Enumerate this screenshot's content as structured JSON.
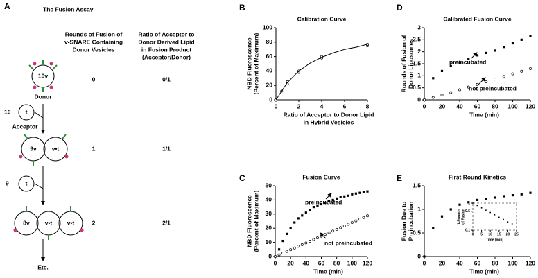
{
  "diagram": {
    "panel": "A",
    "title": "The Fusion Assay",
    "headers": [
      [
        "Rounds of Fusion of",
        "v-SNARE Containing",
        "Donor Vesicles"
      ],
      [
        "Ratio of Acceptor to",
        "Donor Derived Lipid",
        "in Fusion Product",
        "(Acceptor/Donor)"
      ]
    ],
    "rows": [
      [
        "0",
        "0/1"
      ],
      [
        "1",
        "1/1"
      ],
      [
        "2",
        "2/1"
      ]
    ],
    "labels": [
      "10v",
      "Donor",
      "10",
      "t",
      "Acceptor",
      "9v",
      "v•t",
      "9",
      "t",
      "8v",
      "v•t",
      "v•t",
      "Etc."
    ]
  },
  "chart_data": [
    {
      "type": "line",
      "panel": "B",
      "title": "Calibration Curve",
      "ylabel": [
        "NBD Fluorescence",
        "(Percent of Maximum)"
      ],
      "xlabel": [
        "Ratio of Acceptor to Donor Lipid",
        "in Hybrid Vesicles"
      ],
      "xlim": [
        0,
        8
      ],
      "ylim": [
        0,
        100
      ],
      "xticks": [
        0,
        2,
        4,
        6,
        8
      ],
      "yticks": [
        0,
        20,
        40,
        60,
        80,
        100
      ],
      "series": [
        {
          "color": "#000000",
          "style": "points",
          "marker": "open",
          "x": [
            0,
            0.5,
            1,
            1,
            2,
            2,
            4,
            4,
            8,
            8
          ],
          "values": [
            0,
            12,
            22,
            25,
            38,
            40,
            58,
            60,
            75,
            77
          ]
        },
        {
          "color": "#000000",
          "style": "line",
          "x": [
            0,
            1,
            2,
            3,
            4,
            5,
            6,
            7,
            8
          ],
          "values": [
            0,
            24,
            40,
            51,
            59,
            65,
            70,
            73,
            77
          ]
        }
      ]
    },
    {
      "type": "line",
      "panel": "C",
      "title": "Fusion Curve",
      "ylabel": [
        "NBD Fluorescence",
        "(Percent of Maximum)"
      ],
      "xlabel": [
        "Time (min)"
      ],
      "xlim": [
        0,
        120
      ],
      "ylim": [
        0,
        50
      ],
      "xticks": [
        0,
        20,
        40,
        60,
        80,
        100,
        120
      ],
      "yticks": [
        0,
        10,
        20,
        30,
        40,
        50
      ],
      "x": [
        0,
        5,
        10,
        15,
        20,
        25,
        30,
        35,
        40,
        45,
        50,
        55,
        60,
        65,
        70,
        75,
        80,
        85,
        90,
        95,
        100,
        105,
        110,
        115,
        120
      ],
      "annotations": [
        "preincubated",
        "not preincubated"
      ],
      "series": [
        {
          "color": "#000000",
          "style": "points",
          "marker": "filled",
          "values": [
            0,
            5,
            11,
            16,
            20,
            24,
            27,
            29,
            31,
            33,
            35,
            36,
            37,
            38,
            39,
            40,
            41,
            42,
            42.5,
            43,
            44,
            44.5,
            45,
            45.5,
            46
          ]
        },
        {
          "color": "#000000",
          "style": "points",
          "marker": "open",
          "values": [
            0,
            1.2,
            2.4,
            3.6,
            4.8,
            6,
            7.2,
            8.4,
            9.6,
            10.8,
            12,
            13.2,
            14.4,
            15.6,
            16.8,
            18,
            19.2,
            20.4,
            21.6,
            22.8,
            24,
            25.2,
            26.4,
            27.6,
            28.8
          ]
        }
      ]
    },
    {
      "type": "line",
      "panel": "D",
      "title": "Calibrated Fusion Curve",
      "ylabel": [
        "Rounds of Fusion of",
        "Donor Liposomes"
      ],
      "xlabel": [
        "Time (min)"
      ],
      "xlim": [
        0,
        120
      ],
      "ylim": [
        0,
        3
      ],
      "xticks": [
        0,
        20,
        40,
        60,
        80,
        100,
        120
      ],
      "yticks": [
        0,
        0.5,
        1,
        1.5,
        2,
        2.5,
        3
      ],
      "x": [
        0,
        10,
        20,
        30,
        40,
        50,
        60,
        70,
        80,
        90,
        100,
        110,
        120
      ],
      "annotations": [
        "preincubated",
        "not preincubated"
      ],
      "series": [
        {
          "color": "#000000",
          "style": "points",
          "marker": "filled",
          "values": [
            0,
            0.9,
            1.2,
            1.4,
            1.55,
            1.7,
            1.85,
            1.95,
            2.05,
            2.2,
            2.35,
            2.5,
            2.65
          ]
        },
        {
          "color": "#000000",
          "style": "points",
          "marker": "open",
          "values": [
            0,
            0.1,
            0.2,
            0.3,
            0.42,
            0.53,
            0.64,
            0.75,
            0.86,
            0.97,
            1.08,
            1.19,
            1.3
          ]
        }
      ]
    },
    {
      "type": "line",
      "panel": "E",
      "title": "First Round Kinetics",
      "ylabel": [
        "Fusion Due to",
        "Preincubation"
      ],
      "xlabel": [
        "Time (min)"
      ],
      "xlim": [
        0,
        120
      ],
      "ylim": [
        0,
        1.5
      ],
      "xticks": [
        0,
        20,
        40,
        60,
        80,
        100,
        120
      ],
      "yticks": [
        0,
        0.5,
        1,
        1.5
      ],
      "x": [
        0,
        10,
        20,
        30,
        40,
        50,
        60,
        70,
        80,
        90,
        100,
        110,
        120
      ],
      "series": [
        {
          "color": "#000000",
          "style": "points",
          "marker": "filled",
          "values": [
            0,
            0.6,
            0.85,
            1,
            1.1,
            1.15,
            1.2,
            1.22,
            1.25,
            1.28,
            1.3,
            1.32,
            1.35
          ]
        }
      ],
      "inset": {
        "type": "line",
        "ylabel": [
          "1-Rounds",
          "of Fusion"
        ],
        "xlabel": [
          "Time (min)"
        ],
        "log_y": true,
        "xlim": [
          0,
          25
        ],
        "ylim": [
          0.1,
          1
        ],
        "xticks": [
          0,
          5,
          10,
          15,
          20,
          25
        ],
        "yticks": [
          0.1,
          0.5,
          1
        ],
        "x": [
          0,
          2.5,
          5,
          7.5,
          10,
          12.5,
          15,
          17.5,
          20,
          22.5
        ],
        "series": [
          {
            "color": "#000000",
            "style": "points",
            "marker": "filled",
            "values": [
              1,
              0.82,
              0.67,
              0.55,
              0.45,
              0.37,
              0.3,
              0.25,
              0.2,
              0.17
            ]
          }
        ]
      }
    }
  ]
}
